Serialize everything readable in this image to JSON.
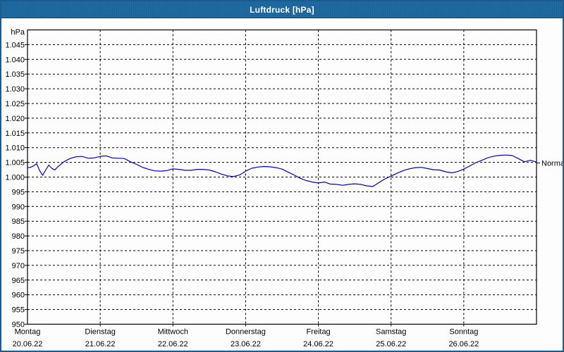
{
  "window": {
    "title": "Luftdruck [hPa]"
  },
  "chart_data": {
    "type": "line",
    "title": "Luftdruck [hPa]",
    "ylabel": "hPa",
    "unit": "hPa",
    "ylim": [
      950,
      1050
    ],
    "y_tick_step": 5,
    "y_tick_labels": [
      "950",
      "955",
      "960",
      "965",
      "970",
      "975",
      "980",
      "985",
      "990",
      "995",
      "1.000",
      "1.005",
      "1.010",
      "1.015",
      "1.020",
      "1.025",
      "1.030",
      "1.035",
      "1.040",
      "1.045"
    ],
    "x_hours_total": 168,
    "x_categories": [
      {
        "day": "Montag",
        "date": "20.06.22"
      },
      {
        "day": "Dienstag",
        "date": "21.06.22"
      },
      {
        "day": "Mittwoch",
        "date": "22.06.22"
      },
      {
        "day": "Donnerstag",
        "date": "23.06.22"
      },
      {
        "day": "Freitag",
        "date": "24.06.22"
      },
      {
        "day": "Samstag",
        "date": "25.06.22"
      },
      {
        "day": "Sonntag",
        "date": "26.06.22"
      }
    ],
    "grid": "dashed",
    "legend_position": "none",
    "normal_marker": {
      "label": "Normal",
      "value": 1004.8
    },
    "series": [
      {
        "name": "Luftdruck",
        "color": "#0000cc",
        "points": [
          [
            0,
            1003.2
          ],
          [
            1,
            1003.3
          ],
          [
            2,
            1003.8
          ],
          [
            3,
            1004.6
          ],
          [
            4,
            1002.2
          ],
          [
            5,
            1000.6
          ],
          [
            6,
            1002.4
          ],
          [
            7,
            1004.1
          ],
          [
            8,
            1003.0
          ],
          [
            9,
            1002.4
          ],
          [
            10,
            1003.5
          ],
          [
            12,
            1005.2
          ],
          [
            14,
            1006.3
          ],
          [
            16,
            1006.9
          ],
          [
            18,
            1007.0
          ],
          [
            20,
            1006.4
          ],
          [
            22,
            1006.5
          ],
          [
            24,
            1007.0
          ],
          [
            26,
            1007.2
          ],
          [
            28,
            1006.5
          ],
          [
            30,
            1006.4
          ],
          [
            32,
            1006.3
          ],
          [
            34,
            1005.2
          ],
          [
            36,
            1004.3
          ],
          [
            38,
            1003.3
          ],
          [
            40,
            1002.6
          ],
          [
            42,
            1002.1
          ],
          [
            44,
            1002.0
          ],
          [
            46,
            1002.2
          ],
          [
            48,
            1002.8
          ],
          [
            50,
            1002.6
          ],
          [
            52,
            1002.3
          ],
          [
            54,
            1002.3
          ],
          [
            56,
            1002.6
          ],
          [
            58,
            1002.6
          ],
          [
            60,
            1002.4
          ],
          [
            62,
            1001.8
          ],
          [
            64,
            1001.0
          ],
          [
            66,
            1000.4
          ],
          [
            68,
            1000.2
          ],
          [
            70,
            1000.7
          ],
          [
            72,
            1002.0
          ],
          [
            74,
            1003.0
          ],
          [
            76,
            1003.4
          ],
          [
            78,
            1003.6
          ],
          [
            80,
            1003.5
          ],
          [
            82,
            1003.2
          ],
          [
            84,
            1002.7
          ],
          [
            86,
            1001.7
          ],
          [
            88,
            1000.7
          ],
          [
            90,
            999.6
          ],
          [
            92,
            998.8
          ],
          [
            94,
            998.3
          ],
          [
            96,
            998.0
          ],
          [
            98,
            998.3
          ],
          [
            100,
            997.6
          ],
          [
            102,
            997.5
          ],
          [
            104,
            997.2
          ],
          [
            106,
            997.5
          ],
          [
            108,
            997.7
          ],
          [
            110,
            997.5
          ],
          [
            112,
            997.0
          ],
          [
            114,
            996.8
          ],
          [
            116,
            998.1
          ],
          [
            118,
            999.4
          ],
          [
            120,
            1000.3
          ],
          [
            122,
            1001.3
          ],
          [
            124,
            1002.2
          ],
          [
            126,
            1002.8
          ],
          [
            128,
            1003.2
          ],
          [
            130,
            1003.3
          ],
          [
            132,
            1002.9
          ],
          [
            134,
            1002.5
          ],
          [
            136,
            1002.4
          ],
          [
            138,
            1001.8
          ],
          [
            140,
            1001.4
          ],
          [
            142,
            1001.9
          ],
          [
            144,
            1002.7
          ],
          [
            146,
            1003.8
          ],
          [
            148,
            1004.9
          ],
          [
            150,
            1005.7
          ],
          [
            152,
            1006.6
          ],
          [
            154,
            1007.1
          ],
          [
            156,
            1007.4
          ],
          [
            158,
            1007.5
          ],
          [
            160,
            1007.3
          ],
          [
            162,
            1006.3
          ],
          [
            164,
            1005.2
          ],
          [
            166,
            1005.7
          ],
          [
            168,
            1005.1
          ]
        ]
      }
    ]
  },
  "colors": {
    "titlebar": "#1f6ba3",
    "window_border": "#1b5c8c",
    "background": "#fdfdfd",
    "axis": "#000000",
    "line": "#0000cc"
  }
}
